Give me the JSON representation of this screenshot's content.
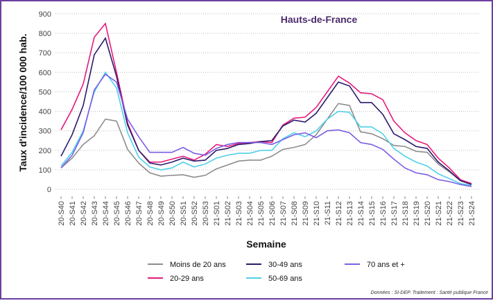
{
  "chart_data": {
    "type": "line",
    "title": "Hauts-de-France",
    "y_label": "Taux d'incidence/100 000 hab.",
    "x_label": "Semaine",
    "source": "Données : SI-DEP. Traitement : Santé publique France",
    "categories": [
      "20-S40",
      "20-S41",
      "20-S42",
      "20-S43",
      "20-S44",
      "20-S45",
      "20-S46",
      "20-S47",
      "20-S48",
      "20-S49",
      "20-S50",
      "20-S51",
      "20-S52",
      "20-S53",
      "21-S01",
      "21-S02",
      "21-S03",
      "21-S04",
      "21-S05",
      "21-S06",
      "21-S07",
      "21-S08",
      "21-S09",
      "21-S10",
      "21-S11",
      "21-S12",
      "21-S13",
      "21-S14",
      "21-S15",
      "21-S16",
      "21-S17",
      "21-S18",
      "21-S19",
      "21-S20",
      "21-S21",
      "21-S22",
      "21-S23",
      "21-S24"
    ],
    "series": [
      {
        "name": "Moins de 20 ans",
        "color": "#8c8c8c",
        "values": [
          110,
          160,
          230,
          275,
          360,
          350,
          205,
          135,
          85,
          68,
          72,
          75,
          62,
          72,
          105,
          125,
          145,
          150,
          150,
          170,
          205,
          215,
          230,
          280,
          360,
          440,
          430,
          295,
          285,
          260,
          225,
          220,
          195,
          190,
          130,
          90,
          45,
          30
        ]
      },
      {
        "name": "20-29 ans",
        "color": "#e6197a",
        "values": [
          305,
          410,
          540,
          780,
          850,
          600,
          340,
          200,
          140,
          140,
          155,
          170,
          150,
          180,
          230,
          220,
          235,
          240,
          245,
          240,
          330,
          365,
          370,
          420,
          500,
          580,
          545,
          495,
          490,
          460,
          350,
          290,
          250,
          230,
          160,
          110,
          50,
          30
        ]
      },
      {
        "name": "30-49 ans",
        "color": "#2b1a6b",
        "values": [
          170,
          280,
          430,
          690,
          775,
          580,
          330,
          200,
          135,
          125,
          140,
          160,
          145,
          150,
          200,
          210,
          230,
          235,
          245,
          250,
          325,
          355,
          345,
          390,
          470,
          550,
          530,
          445,
          445,
          385,
          285,
          255,
          220,
          210,
          140,
          95,
          45,
          25
        ]
      },
      {
        "name": "50-69 ans",
        "color": "#4fd0e8",
        "values": [
          120,
          190,
          300,
          500,
          600,
          520,
          290,
          165,
          115,
          100,
          110,
          140,
          115,
          130,
          160,
          175,
          185,
          185,
          200,
          200,
          260,
          290,
          270,
          300,
          360,
          400,
          395,
          320,
          320,
          285,
          210,
          170,
          140,
          120,
          80,
          55,
          30,
          20
        ]
      },
      {
        "name": "70 ans et +",
        "color": "#7b5ce6",
        "values": [
          110,
          175,
          290,
          510,
          590,
          550,
          360,
          270,
          190,
          190,
          190,
          215,
          185,
          175,
          210,
          230,
          240,
          240,
          240,
          230,
          255,
          280,
          290,
          265,
          300,
          305,
          290,
          240,
          230,
          205,
          155,
          110,
          85,
          75,
          50,
          40,
          25,
          15
        ]
      }
    ],
    "ylim": [
      -35,
      935
    ],
    "yticks": [
      0,
      100,
      200,
      300,
      400,
      500,
      600,
      700,
      800,
      900
    ],
    "grid": true,
    "legend": "bottom"
  }
}
